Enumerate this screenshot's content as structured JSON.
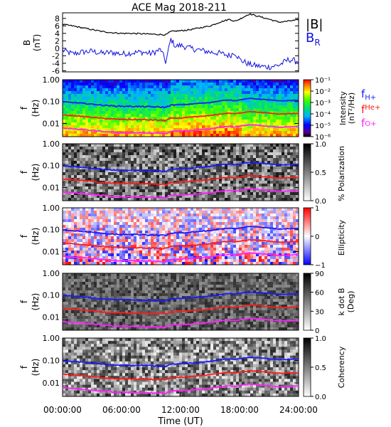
{
  "figure": {
    "title": "ACE Mag 2018-211",
    "xlabel": "Time (UT)",
    "xticks": [
      "00:00:00",
      "06:00:00",
      "12:00:00",
      "18:00:00",
      "24:00:00"
    ],
    "xlim_hours": [
      0,
      24
    ]
  },
  "colors": {
    "B_total": "#000000",
    "B_R": "#1010e0",
    "f_H": "#1a1aff",
    "f_He": "#ff1a1a",
    "f_O": "#ff20ff",
    "axis": "#000000"
  },
  "legend": {
    "B_total": "|B|",
    "B_R_main": "B",
    "B_R_sub": "R",
    "f_H_main": "f",
    "f_H_sub": "H+",
    "f_He_main": "f",
    "f_He_sub": "He+",
    "f_O_main": "f",
    "f_O_sub": "O+"
  },
  "freq_axis": {
    "ylabel_main": "f",
    "ylabel_unit": "(Hz)",
    "ticks": [
      "1.00",
      "0.10",
      "0.01"
    ],
    "tick_values": [
      1.0,
      0.1,
      0.01
    ],
    "ylim": [
      0.0025,
      1.0
    ],
    "scale": "log"
  },
  "chart_data": [
    {
      "panel": "magnetic_field",
      "type": "line",
      "ylabel_main": "B",
      "ylabel_unit": "(nT)",
      "yticks": [
        "8",
        "6",
        "4",
        "2",
        "0",
        "-2",
        "-4",
        "-6"
      ],
      "ytick_values": [
        8,
        6,
        4,
        2,
        0,
        -2,
        -4,
        -6
      ],
      "ylim": [
        -6.3,
        9.5
      ],
      "x_hours": [
        0,
        1,
        2,
        3,
        4,
        5,
        6,
        7,
        8,
        9,
        10,
        10.5,
        11,
        11.5,
        12,
        13,
        14,
        15,
        16,
        17,
        17.5,
        18,
        19,
        20,
        21,
        22,
        23,
        24
      ],
      "series": [
        {
          "name": "|B|",
          "values": [
            6.4,
            6.0,
            5.5,
            5.0,
            4.5,
            4.2,
            4.0,
            4.0,
            3.9,
            3.8,
            3.7,
            3.6,
            4.5,
            4.6,
            4.7,
            5.0,
            5.5,
            6.0,
            7.0,
            7.8,
            7.2,
            7.8,
            9.2,
            8.5,
            7.8,
            7.0,
            7.3,
            7.6
          ]
        },
        {
          "name": "B_R",
          "values": [
            -0.5,
            -1.5,
            -1.0,
            -0.8,
            -1.3,
            -1.1,
            -1.5,
            -1.2,
            -1.0,
            -1.4,
            -0.3,
            -3.8,
            2.5,
            0.5,
            0.8,
            0.0,
            -0.5,
            -1.0,
            -1.3,
            -2.0,
            -1.0,
            -3.0,
            -4.3,
            -4.8,
            -5.0,
            -4.5,
            -3.0,
            -3.5
          ]
        }
      ]
    },
    {
      "panel": "intensity",
      "type": "heatmap",
      "colorbar_label": "Intensity",
      "colorbar_unit": "(nT²/Hz)",
      "colorbar_ticks": [
        "10⁻¹",
        "10⁻²",
        "10⁻³",
        "10⁻⁴",
        "10⁻⁵",
        "10⁻⁶"
      ],
      "colorbar_range": [
        1e-06,
        0.3
      ],
      "colorbar_scale": "log"
    },
    {
      "panel": "polarization",
      "type": "heatmap",
      "colorbar_label": "% Polarization",
      "colorbar_ticks": [
        "1.0",
        "0.5",
        "0.0"
      ],
      "colorbar_range": [
        0,
        1
      ]
    },
    {
      "panel": "ellipticity",
      "type": "heatmap",
      "colorbar_label": "Ellipticity",
      "colorbar_ticks": [
        "1",
        "0",
        "−1"
      ],
      "colorbar_range": [
        -1,
        1
      ]
    },
    {
      "panel": "k_dot_B",
      "type": "heatmap",
      "colorbar_label": "k dot B",
      "colorbar_unit": "(Deg)",
      "colorbar_ticks": [
        "90",
        "60",
        "30",
        "0"
      ],
      "colorbar_range": [
        0,
        90
      ]
    },
    {
      "panel": "coherency",
      "type": "heatmap",
      "colorbar_label": "Coherency",
      "colorbar_ticks": [
        "1.0",
        "0.5",
        "0.0"
      ],
      "colorbar_range": [
        0,
        1
      ]
    },
    {
      "panel": "gyrofrequency_overlays",
      "type": "line",
      "x_hours": [
        0,
        1,
        2,
        3,
        4,
        5,
        6,
        7,
        8,
        9,
        10,
        10.5,
        11,
        11.5,
        12,
        13,
        14,
        15,
        16,
        17,
        17.5,
        18,
        19,
        20,
        21,
        22,
        23,
        24
      ],
      "series": [
        {
          "name": "f_H+",
          "values": [
            0.097,
            0.091,
            0.084,
            0.076,
            0.069,
            0.064,
            0.061,
            0.061,
            0.059,
            0.058,
            0.056,
            0.055,
            0.069,
            0.07,
            0.072,
            0.076,
            0.084,
            0.091,
            0.107,
            0.119,
            0.11,
            0.119,
            0.14,
            0.13,
            0.119,
            0.107,
            0.111,
            0.116
          ]
        },
        {
          "name": "f_He+",
          "values": [
            0.0244,
            0.0229,
            0.021,
            0.0191,
            0.0172,
            0.016,
            0.0152,
            0.0152,
            0.0149,
            0.0145,
            0.0141,
            0.0137,
            0.0172,
            0.0175,
            0.0179,
            0.0191,
            0.021,
            0.0229,
            0.0267,
            0.0297,
            0.0274,
            0.0297,
            0.0351,
            0.0324,
            0.0297,
            0.0267,
            0.0278,
            0.029
          ]
        },
        {
          "name": "f_O+",
          "values": [
            0.0061,
            0.0057,
            0.0052,
            0.0048,
            0.0043,
            0.004,
            0.0038,
            0.0038,
            0.0037,
            0.0036,
            0.0035,
            0.0034,
            0.0043,
            0.0044,
            0.0045,
            0.0048,
            0.0052,
            0.0057,
            0.0067,
            0.0074,
            0.0069,
            0.0074,
            0.0088,
            0.0081,
            0.0074,
            0.0067,
            0.0069,
            0.0072
          ]
        }
      ]
    }
  ]
}
